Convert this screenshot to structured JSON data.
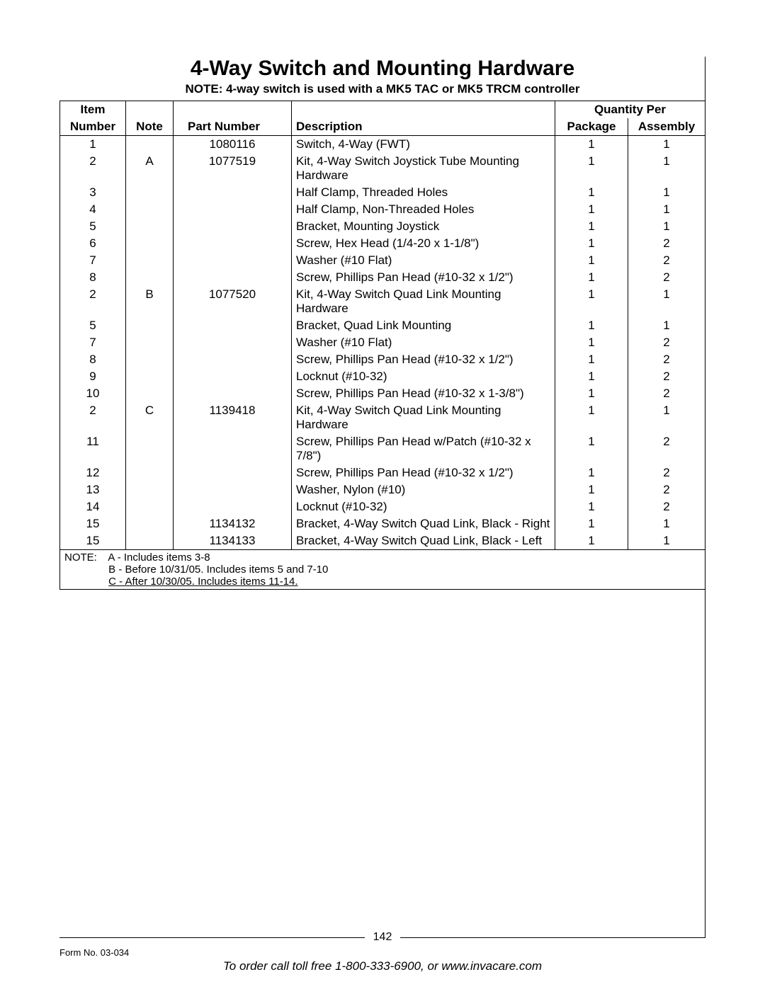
{
  "title": "4-Way Switch and Mounting Hardware",
  "subtitle": "NOTE: 4-way switch is used with a MK5 TAC or MK5 TRCM controller",
  "columns": {
    "item_top": "Item",
    "item": "Number",
    "note": "Note",
    "part": "Part Number",
    "desc": "Description",
    "qty_group": "Quantity Per",
    "pkg": "Package",
    "asm": "Assembly"
  },
  "rows": [
    {
      "item": "1",
      "note": "",
      "part": "1080116",
      "desc": "Switch, 4-Way (FWT)",
      "pkg": "1",
      "asm": "1"
    },
    {
      "item": "2",
      "note": "A",
      "part": "1077519",
      "desc": "Kit, 4-Way Switch Joystick Tube Mounting Hardware",
      "pkg": "1",
      "asm": "1"
    },
    {
      "item": "3",
      "note": "",
      "part": "",
      "desc": "Half Clamp, Threaded Holes",
      "pkg": "1",
      "asm": "1"
    },
    {
      "item": "4",
      "note": "",
      "part": "",
      "desc": "Half Clamp, Non-Threaded Holes",
      "pkg": "1",
      "asm": "1"
    },
    {
      "item": "5",
      "note": "",
      "part": "",
      "desc": "Bracket, Mounting Joystick",
      "pkg": "1",
      "asm": "1"
    },
    {
      "item": "6",
      "note": "",
      "part": "",
      "desc": "Screw, Hex Head (1/4-20 x 1-1/8\")",
      "pkg": "1",
      "asm": "2"
    },
    {
      "item": "7",
      "note": "",
      "part": "",
      "desc": "Washer (#10 Flat)",
      "pkg": "1",
      "asm": "2"
    },
    {
      "item": "8",
      "note": "",
      "part": "",
      "desc": "Screw, Phillips Pan Head (#10-32 x 1/2\")",
      "pkg": "1",
      "asm": "2"
    },
    {
      "item": "2",
      "note": "B",
      "part": "1077520",
      "desc": "Kit, 4-Way Switch Quad Link Mounting Hardware",
      "pkg": "1",
      "asm": "1"
    },
    {
      "item": "5",
      "note": "",
      "part": "",
      "desc": "Bracket, Quad Link Mounting",
      "pkg": "1",
      "asm": "1"
    },
    {
      "item": "7",
      "note": "",
      "part": "",
      "desc": "Washer (#10 Flat)",
      "pkg": "1",
      "asm": "2"
    },
    {
      "item": "8",
      "note": "",
      "part": "",
      "desc": "Screw, Phillips Pan Head (#10-32 x 1/2\")",
      "pkg": "1",
      "asm": "2"
    },
    {
      "item": "9",
      "note": "",
      "part": "",
      "desc": "Locknut (#10-32)",
      "pkg": "1",
      "asm": "2"
    },
    {
      "item": "10",
      "note": "",
      "part": "",
      "desc": "Screw, Phillips Pan Head (#10-32 x 1-3/8\")",
      "pkg": "1",
      "asm": "2"
    },
    {
      "item": "2",
      "note": "C",
      "part": "1139418",
      "desc": "Kit, 4-Way Switch Quad Link Mounting Hardware",
      "pkg": "1",
      "asm": "1"
    },
    {
      "item": "11",
      "note": "",
      "part": "",
      "desc": "Screw, Phillips Pan Head w/Patch (#10-32 x 7/8\")",
      "pkg": "1",
      "asm": "2"
    },
    {
      "item": "12",
      "note": "",
      "part": "",
      "desc": "Screw, Phillips Pan Head (#10-32 x 1/2\")",
      "pkg": "1",
      "asm": "2"
    },
    {
      "item": "13",
      "note": "",
      "part": "",
      "desc": "Washer, Nylon (#10)",
      "pkg": "1",
      "asm": "2"
    },
    {
      "item": "14",
      "note": "",
      "part": "",
      "desc": "Locknut (#10-32)",
      "pkg": "1",
      "asm": "2"
    },
    {
      "item": "15",
      "note": "",
      "part": "1134132",
      "desc": "Bracket, 4-Way Switch Quad Link, Black - Right",
      "pkg": "1",
      "asm": "1"
    },
    {
      "item": "15",
      "note": "",
      "part": "1134133",
      "desc": "Bracket, 4-Way Switch Quad Link, Black - Left",
      "pkg": "1",
      "asm": "1"
    }
  ],
  "footnotes": {
    "label": "NOTE:",
    "lines": [
      "A - Includes items 3-8",
      "B - Before 10/31/05. Includes items 5 and 7-10",
      "C - After 10/30/05. Includes items 11-14."
    ]
  },
  "page_number": "142",
  "form_no": "Form No. 03-034",
  "order_line": "To order call toll free 1-800-333-6900, or www.invacare.com"
}
